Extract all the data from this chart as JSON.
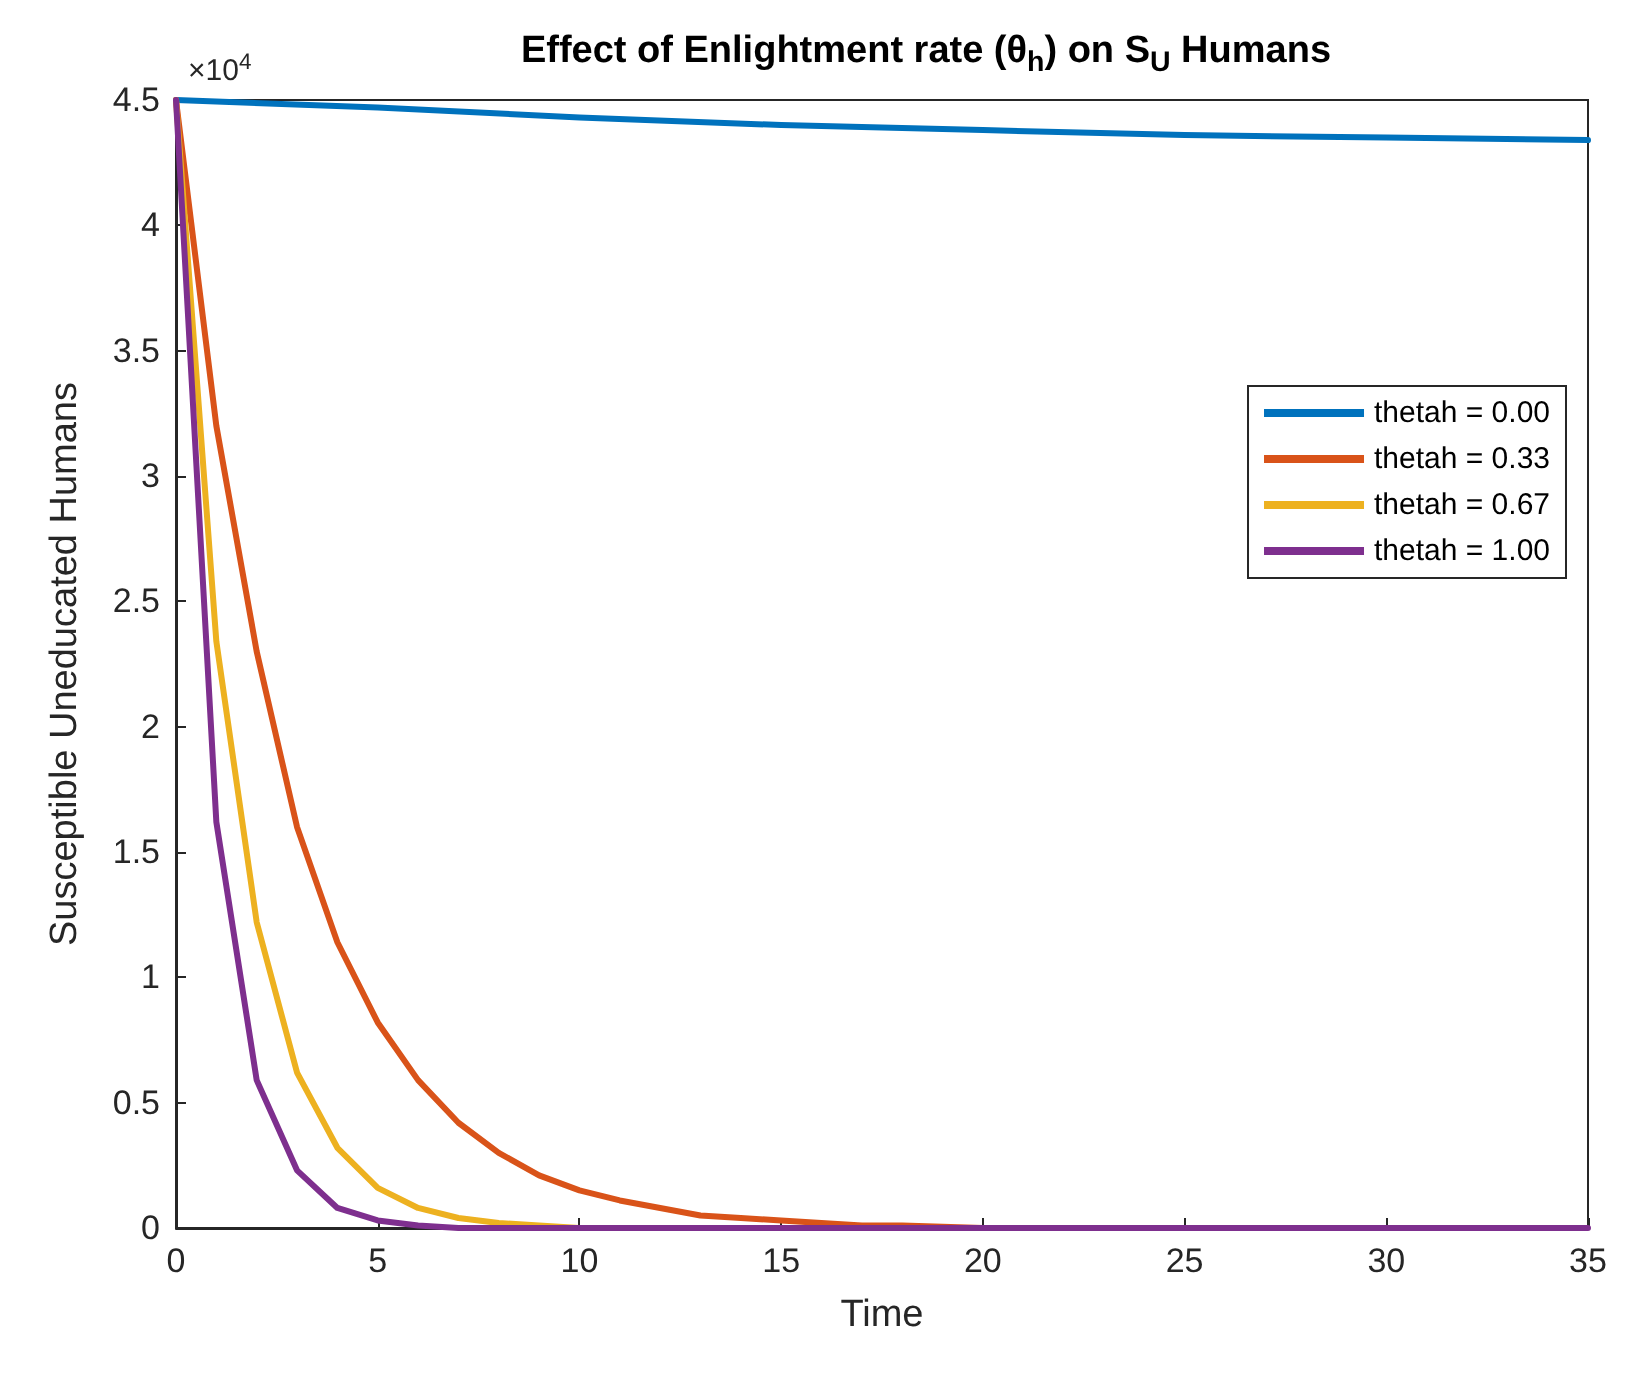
{
  "chart_data": {
    "type": "line",
    "title": "Effect of Enlightment rate (θ$_{h}$) on S$_{U}$ Humans",
    "xlabel": "Time",
    "ylabel": "Susceptible Uneducated Humans",
    "annotations": [
      "×10$^{4}$"
    ],
    "xlim": [
      0,
      35
    ],
    "xticks": [
      0,
      5,
      10,
      15,
      20,
      25,
      30,
      35
    ],
    "ylim": [
      0,
      4.5
    ],
    "yticks": [
      0,
      0.5,
      1,
      1.5,
      2,
      2.5,
      3,
      3.5,
      4,
      4.5
    ],
    "grid": false,
    "legend": "right",
    "marker": "none",
    "line_style": "solid",
    "series": [
      {
        "name": "thetah = 0.00",
        "color": "#0072bd",
        "x": [
          0,
          5,
          10,
          15,
          20,
          25,
          30,
          35
        ],
        "values": [
          4.5,
          4.47,
          4.43,
          4.4,
          4.38,
          4.36,
          4.35,
          4.34
        ]
      },
      {
        "name": "thetah = 0.33",
        "color": "#d95319",
        "x": [
          0,
          1,
          2,
          3,
          4,
          5,
          6,
          7,
          8,
          9,
          10,
          11,
          12,
          13,
          14,
          15,
          16,
          17,
          18,
          20,
          25
        ],
        "values": [
          4.5,
          3.2,
          2.3,
          1.6,
          1.14,
          0.82,
          0.59,
          0.42,
          0.3,
          0.21,
          0.15,
          0.11,
          0.08,
          0.05,
          0.04,
          0.03,
          0.02,
          0.01,
          0.01,
          0,
          0
        ]
      },
      {
        "name": "thetah = 0.67",
        "color": "#edb120",
        "x": [
          0,
          1,
          2,
          3,
          4,
          5,
          6,
          7,
          8,
          9,
          10,
          15
        ],
        "values": [
          4.5,
          2.34,
          1.22,
          0.62,
          0.32,
          0.16,
          0.08,
          0.04,
          0.02,
          0.01,
          0,
          0
        ]
      },
      {
        "name": "thetah = 1.00",
        "color": "#7e2f8e",
        "x": [
          0,
          1,
          2,
          3,
          4,
          5,
          6,
          7,
          8,
          10,
          15,
          20,
          25,
          30,
          35
        ],
        "values": [
          4.5,
          1.62,
          0.59,
          0.23,
          0.08,
          0.03,
          0.01,
          0,
          0,
          0,
          0,
          0,
          0,
          0,
          0
        ]
      }
    ]
  }
}
